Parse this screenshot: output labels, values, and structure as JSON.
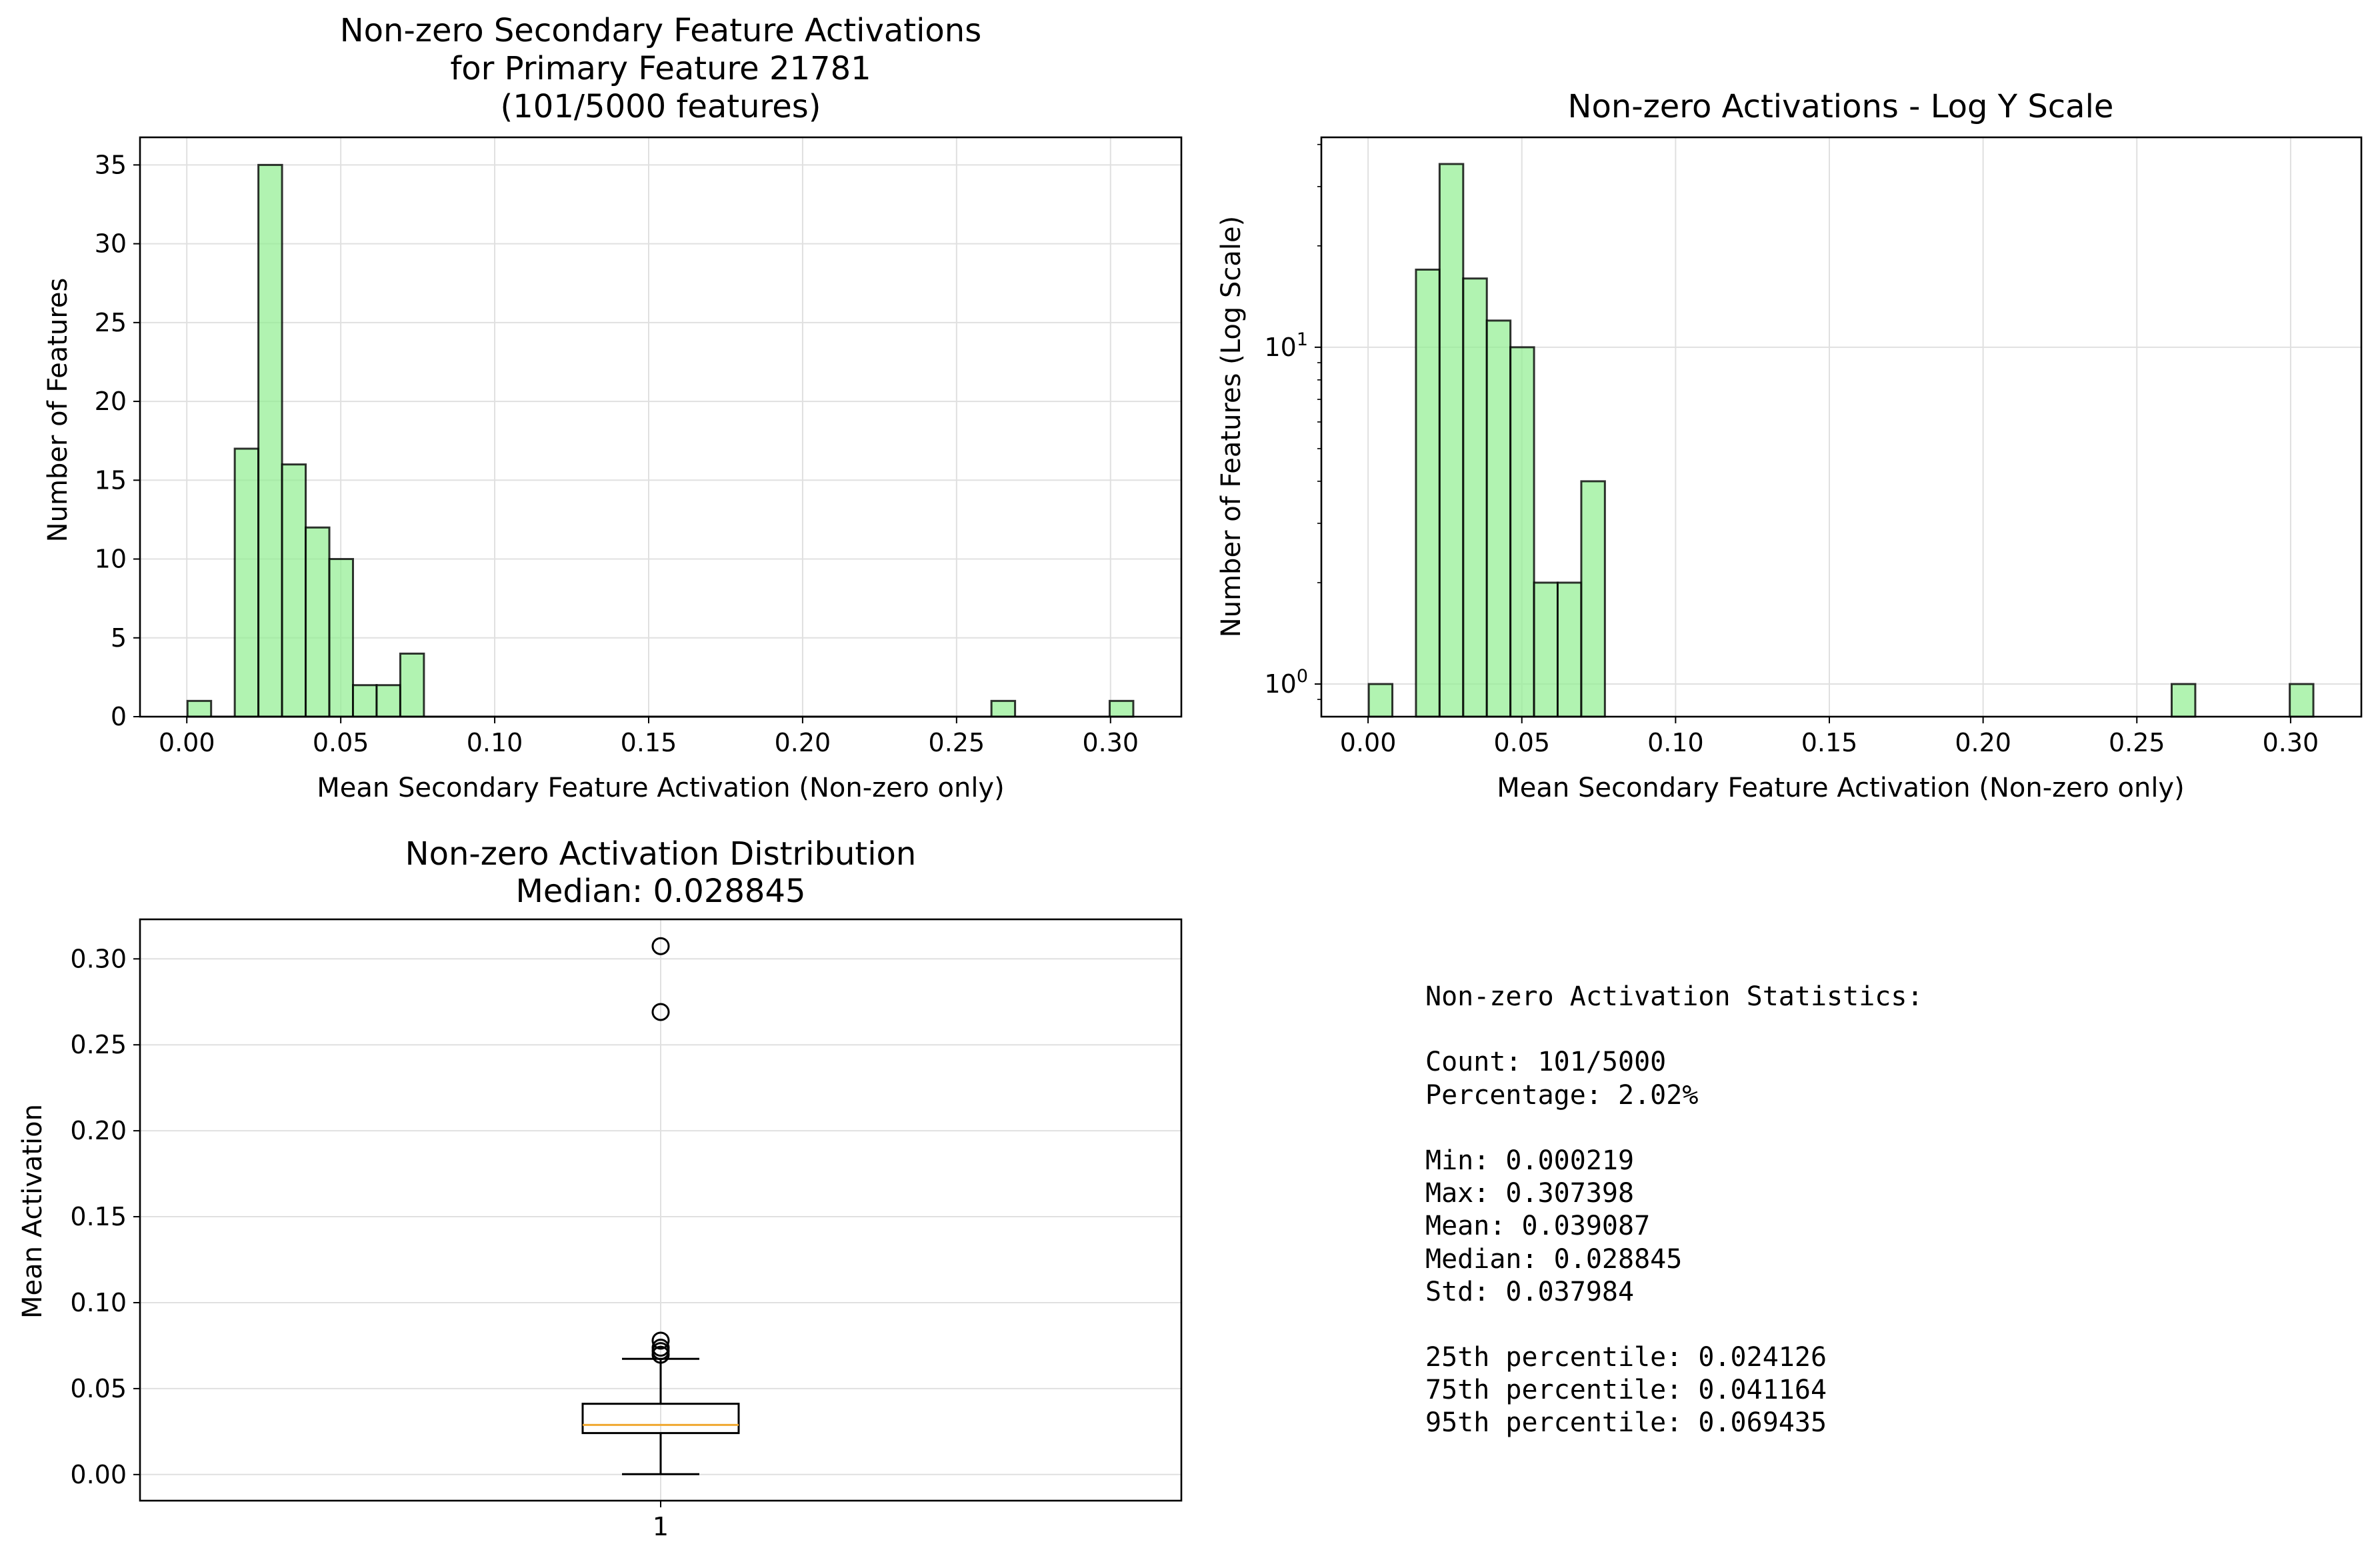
{
  "chart_data": [
    {
      "type": "bar",
      "title_lines": [
        "Non-zero Secondary Feature Activations",
        "for Primary Feature 21781",
        "(101/5000 features)"
      ],
      "xlabel": "Mean Secondary Feature Activation (Non-zero only)",
      "ylabel": "Number of Features",
      "xlim": [
        -0.0152,
        0.323
      ],
      "ylim": [
        0,
        36.75
      ],
      "xticks": [
        "0.00",
        "0.05",
        "0.10",
        "0.15",
        "0.20",
        "0.25",
        "0.30"
      ],
      "xtick_values": [
        0,
        0.05,
        0.1,
        0.15,
        0.2,
        0.25,
        0.3
      ],
      "yticks": [
        "0",
        "5",
        "10",
        "15",
        "20",
        "25",
        "30",
        "35"
      ],
      "ytick_values": [
        0,
        5,
        10,
        15,
        20,
        25,
        30,
        35
      ],
      "grid": true,
      "bin_start": 0.000219,
      "bin_width": 0.0076795,
      "counts": [
        1,
        0,
        17,
        35,
        16,
        12,
        10,
        2,
        2,
        4,
        0,
        0,
        0,
        0,
        0,
        0,
        0,
        0,
        0,
        0,
        0,
        0,
        0,
        0,
        0,
        0,
        0,
        0,
        0,
        0,
        0,
        0,
        0,
        0,
        1,
        0,
        0,
        0,
        0,
        1
      ],
      "bar_color": "#90ee90",
      "edge_color": "#000000"
    },
    {
      "type": "bar",
      "title": "Non-zero Activations - Log Y Scale",
      "xlabel": "Mean Secondary Feature Activation (Non-zero only)",
      "ylabel": "Number of Features (Log Scale)",
      "yscale": "log",
      "xlim": [
        -0.0152,
        0.323
      ],
      "ylim": [
        0.8,
        42
      ],
      "xticks": [
        "0.00",
        "0.05",
        "0.10",
        "0.15",
        "0.20",
        "0.25",
        "0.30"
      ],
      "xtick_values": [
        0,
        0.05,
        0.1,
        0.15,
        0.2,
        0.25,
        0.3
      ],
      "yticks": [
        {
          "base": "10",
          "exp": "0",
          "value": 1
        },
        {
          "base": "10",
          "exp": "1",
          "value": 10
        }
      ],
      "grid": true,
      "bin_start": 0.000219,
      "bin_width": 0.0076795,
      "counts": [
        1,
        0,
        17,
        35,
        16,
        12,
        10,
        2,
        2,
        4,
        0,
        0,
        0,
        0,
        0,
        0,
        0,
        0,
        0,
        0,
        0,
        0,
        0,
        0,
        0,
        0,
        0,
        0,
        0,
        0,
        0,
        0,
        0,
        0,
        1,
        0,
        0,
        0,
        0,
        1
      ],
      "bar_color": "#90ee90",
      "edge_color": "#000000"
    },
    {
      "type": "box",
      "title_lines": [
        "Non-zero Activation Distribution",
        "Median: 0.028845"
      ],
      "ylabel": "Mean Activation",
      "xticks": [
        "1"
      ],
      "ylim": [
        -0.0152,
        0.323
      ],
      "yticks": [
        "0.00",
        "0.05",
        "0.10",
        "0.15",
        "0.20",
        "0.25",
        "0.30"
      ],
      "ytick_values": [
        0,
        0.05,
        0.1,
        0.15,
        0.2,
        0.25,
        0.3
      ],
      "grid": true,
      "box": {
        "whisker_low": 0.000219,
        "q1": 0.024126,
        "median": 0.028845,
        "q3": 0.041164,
        "whisker_high": 0.0673
      },
      "outliers": [
        0.307398,
        0.2691,
        0.0779,
        0.0738,
        0.0718,
        0.0697
      ],
      "median_color": "#f0a830"
    }
  ],
  "stats": {
    "lines": [
      "Non-zero Activation Statistics:",
      "",
      "Count: 101/5000",
      "Percentage: 2.02%",
      "",
      "Min: 0.000219",
      "Max: 0.307398",
      "Mean: 0.039087",
      "Median: 0.028845",
      "Std: 0.037984",
      "",
      "25th percentile: 0.024126",
      "75th percentile: 0.041164",
      "95th percentile: 0.069435"
    ]
  }
}
